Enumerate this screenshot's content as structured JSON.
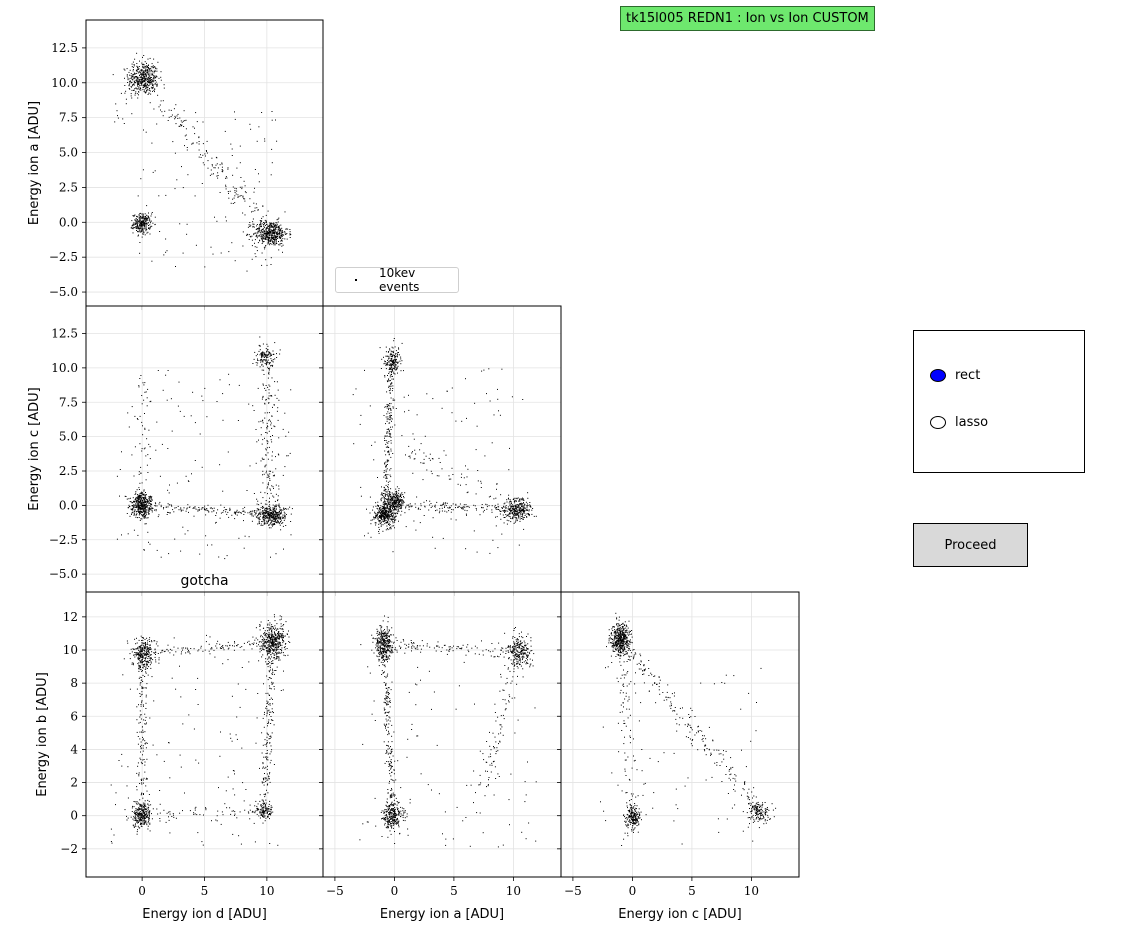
{
  "window": {
    "title": "tk15l005 REDN1 : Ion vs Ion CUSTOM"
  },
  "controls": {
    "radio_options": [
      {
        "label": "rect",
        "selected": true,
        "color": "#0000ff"
      },
      {
        "label": "lasso",
        "selected": false
      }
    ],
    "proceed_label": "Proceed"
  },
  "colors": {
    "title_bg": "#6ee86e",
    "points": "#000000",
    "button_bg": "#d9d9d9",
    "radio_selected": "#0000ff"
  },
  "chart_data": [
    {
      "type": "scatter",
      "panel": "top-left",
      "ylabel": "Energy ion a [ADU]",
      "xlabel": "",
      "xlim": [
        -4.5,
        14.5
      ],
      "ylim": [
        -6.0,
        14.5
      ],
      "xticks": [
        0,
        5,
        10
      ],
      "yticks": [
        -5.0,
        -2.5,
        0.0,
        2.5,
        5.0,
        7.5,
        10.0,
        12.5
      ],
      "ytick_labels": [
        "−5.0",
        "−2.5",
        "0.0",
        "2.5",
        "5.0",
        "7.5",
        "10.0",
        "12.5"
      ],
      "grid": true,
      "series": [
        {
          "clusters": [
            {
              "x": 0.1,
              "y": 10.3,
              "sx": 0.6,
              "sy": 0.6,
              "n": 420
            },
            {
              "x": 0.0,
              "y": -0.1,
              "sx": 0.35,
              "sy": 0.35,
              "n": 260
            },
            {
              "x": 10.3,
              "y": -0.8,
              "sx": 0.7,
              "sy": 0.45,
              "n": 460
            }
          ],
          "bands": [
            {
              "from": [
                0.1,
                10.3
              ],
              "to": [
                10.3,
                -0.8
              ],
              "n": 180,
              "jit": 0.8
            },
            {
              "from": [
                -0.3,
                12.0
              ],
              "to": [
                -2.0,
                7.0
              ],
              "n": 30,
              "jit": 0.6
            }
          ],
          "scatter_region": {
            "xlim": [
              -1,
              11
            ],
            "ylim": [
              -3.5,
              8
            ],
            "n": 110
          }
        }
      ]
    },
    {
      "type": "scatter",
      "panel": "middle-left",
      "ylabel": "Energy ion c [ADU]",
      "xlabel": "",
      "xlim": [
        -4.5,
        14.5
      ],
      "ylim": [
        -6.3,
        14.5
      ],
      "xticks": [
        0,
        5,
        10
      ],
      "yticks": [
        -5.0,
        -2.5,
        0.0,
        2.5,
        5.0,
        7.5,
        10.0,
        12.5
      ],
      "ytick_labels": [
        "−5.0",
        "−2.5",
        "0.0",
        "2.5",
        "5.0",
        "7.5",
        "10.0",
        "12.5"
      ],
      "grid": true,
      "annotation": "gotcha",
      "series": [
        {
          "clusters": [
            {
              "x": 0.0,
              "y": 0.0,
              "sx": 0.45,
              "sy": 0.45,
              "n": 420
            },
            {
              "x": 10.4,
              "y": -0.7,
              "sx": 0.6,
              "sy": 0.4,
              "n": 360
            },
            {
              "x": 9.9,
              "y": 10.8,
              "sx": 0.4,
              "sy": 0.4,
              "n": 120
            }
          ],
          "bands": [
            {
              "from": [
                0.0,
                0.0
              ],
              "to": [
                10.4,
                -0.7
              ],
              "n": 150,
              "jit": 0.35
            },
            {
              "from": [
                10.4,
                -0.7
              ],
              "to": [
                9.9,
                10.8
              ],
              "n": 170,
              "jit": 0.8
            },
            {
              "from": [
                0.0,
                0.0
              ],
              "to": [
                0.0,
                9.0
              ],
              "n": 60,
              "jit": 0.8
            }
          ],
          "scatter_region": {
            "xlim": [
              -2,
              12
            ],
            "ylim": [
              -4,
              10
            ],
            "n": 140
          }
        }
      ]
    },
    {
      "type": "scatter",
      "panel": "middle-center",
      "xlabel": "",
      "ylabel": "",
      "xlim": [
        -6.0,
        14.0
      ],
      "ylim": [
        -6.3,
        14.5
      ],
      "xticks": [
        -5,
        0,
        5,
        10
      ],
      "yticks": [
        -5.0,
        -2.5,
        0.0,
        2.5,
        5.0,
        7.5,
        10.0,
        12.5
      ],
      "grid": true,
      "series": [
        {
          "clusters": [
            {
              "x": -0.8,
              "y": -0.7,
              "sx": 0.45,
              "sy": 0.4,
              "n": 360
            },
            {
              "x": 0.0,
              "y": 0.3,
              "sx": 0.45,
              "sy": 0.35,
              "n": 260
            },
            {
              "x": 10.3,
              "y": -0.3,
              "sx": 0.6,
              "sy": 0.4,
              "n": 300
            },
            {
              "x": -0.2,
              "y": 10.5,
              "sx": 0.35,
              "sy": 0.5,
              "n": 160
            }
          ],
          "bands": [
            {
              "from": [
                -0.2,
                10.5
              ],
              "to": [
                -0.8,
                -0.7
              ],
              "n": 230,
              "jit": 0.35
            },
            {
              "from": [
                0.0,
                0.0
              ],
              "to": [
                10.3,
                -0.3
              ],
              "n": 140,
              "jit": 0.35
            },
            {
              "from": [
                1.0,
                4.0
              ],
              "to": [
                10.3,
                -0.3
              ],
              "n": 70,
              "jit": 0.9
            }
          ],
          "scatter_region": {
            "xlim": [
              -3.5,
              11
            ],
            "ylim": [
              -3.5,
              10
            ],
            "n": 110
          }
        }
      ]
    },
    {
      "type": "scatter",
      "panel": "bottom-left",
      "ylabel": "Energy ion b [ADU]",
      "xlabel": "Energy ion d [ADU]",
      "xlim": [
        -4.5,
        14.5
      ],
      "ylim": [
        -3.7,
        13.5
      ],
      "xticks": [
        0,
        5,
        10
      ],
      "yticks": [
        -2,
        0,
        2,
        4,
        6,
        8,
        10,
        12
      ],
      "ytick_labels": [
        "−2",
        "0",
        "2",
        "4",
        "6",
        "8",
        "10",
        "12"
      ],
      "grid": true,
      "series": [
        {
          "clusters": [
            {
              "x": 0.1,
              "y": 9.8,
              "sx": 0.45,
              "sy": 0.45,
              "n": 280
            },
            {
              "x": 10.5,
              "y": 10.5,
              "sx": 0.55,
              "sy": 0.55,
              "n": 420
            },
            {
              "x": 0.0,
              "y": 0.0,
              "sx": 0.4,
              "sy": 0.4,
              "n": 260
            },
            {
              "x": 9.8,
              "y": 0.3,
              "sx": 0.35,
              "sy": 0.3,
              "n": 110
            }
          ],
          "bands": [
            {
              "from": [
                0.1,
                9.8
              ],
              "to": [
                10.5,
                10.5
              ],
              "n": 110,
              "jit": 0.35
            },
            {
              "from": [
                0.1,
                9.8
              ],
              "to": [
                0.0,
                0.0
              ],
              "n": 150,
              "jit": 0.45
            },
            {
              "from": [
                10.5,
                10.5
              ],
              "to": [
                9.8,
                0.3
              ],
              "n": 180,
              "jit": 0.45
            },
            {
              "from": [
                0.0,
                0.0
              ],
              "to": [
                9.8,
                0.3
              ],
              "n": 60,
              "jit": 0.4
            }
          ],
          "scatter_region": {
            "xlim": [
              -2.5,
              12
            ],
            "ylim": [
              -2,
              11
            ],
            "n": 120
          }
        }
      ]
    },
    {
      "type": "scatter",
      "panel": "bottom-center",
      "ylabel": "",
      "xlabel": "Energy ion a [ADU]",
      "xlim": [
        -6.0,
        14.0
      ],
      "ylim": [
        -3.7,
        13.5
      ],
      "xticks": [
        -5,
        0,
        5,
        10
      ],
      "xtick_labels": [
        "−5",
        "0",
        "5",
        "10"
      ],
      "yticks": [
        -2,
        0,
        2,
        4,
        6,
        8,
        10,
        12
      ],
      "grid": true,
      "series": [
        {
          "clusters": [
            {
              "x": -0.9,
              "y": 10.4,
              "sx": 0.35,
              "sy": 0.5,
              "n": 320
            },
            {
              "x": 10.5,
              "y": 9.9,
              "sx": 0.5,
              "sy": 0.45,
              "n": 240
            },
            {
              "x": -0.1,
              "y": 0.0,
              "sx": 0.45,
              "sy": 0.4,
              "n": 260
            }
          ],
          "bands": [
            {
              "from": [
                -0.9,
                10.4
              ],
              "to": [
                10.5,
                9.9
              ],
              "n": 110,
              "jit": 0.35
            },
            {
              "from": [
                -0.9,
                10.4
              ],
              "to": [
                -0.1,
                0.0
              ],
              "n": 200,
              "jit": 0.4
            },
            {
              "from": [
                10.5,
                9.9
              ],
              "to": [
                7.0,
                1.0
              ],
              "n": 90,
              "jit": 0.8
            }
          ],
          "scatter_region": {
            "xlim": [
              -3,
              12
            ],
            "ylim": [
              -2,
              11
            ],
            "n": 110
          }
        }
      ]
    },
    {
      "type": "scatter",
      "panel": "bottom-right",
      "ylabel": "",
      "xlabel": "Energy ion c [ADU]",
      "xlim": [
        -6.0,
        14.0
      ],
      "ylim": [
        -3.7,
        13.5
      ],
      "xticks": [
        -5,
        0,
        5,
        10
      ],
      "xtick_labels": [
        "−5",
        "0",
        "5",
        "10"
      ],
      "yticks": [
        -2,
        0,
        2,
        4,
        6,
        8,
        10,
        12
      ],
      "grid": true,
      "series": [
        {
          "clusters": [
            {
              "x": -1.0,
              "y": 10.6,
              "sx": 0.4,
              "sy": 0.5,
              "n": 440
            },
            {
              "x": 0.0,
              "y": -0.1,
              "sx": 0.3,
              "sy": 0.35,
              "n": 200
            },
            {
              "x": 10.6,
              "y": 0.3,
              "sx": 0.45,
              "sy": 0.35,
              "n": 140
            }
          ],
          "bands": [
            {
              "from": [
                -1.0,
                10.6
              ],
              "to": [
                10.6,
                0.3
              ],
              "n": 200,
              "jit": 0.7
            },
            {
              "from": [
                -1.0,
                10.6
              ],
              "to": [
                0.0,
                -0.1
              ],
              "n": 80,
              "jit": 0.7
            }
          ],
          "scatter_region": {
            "xlim": [
              -3,
              11
            ],
            "ylim": [
              -2,
              9
            ],
            "n": 80
          }
        }
      ]
    }
  ],
  "legend": {
    "label": "10kev events"
  }
}
